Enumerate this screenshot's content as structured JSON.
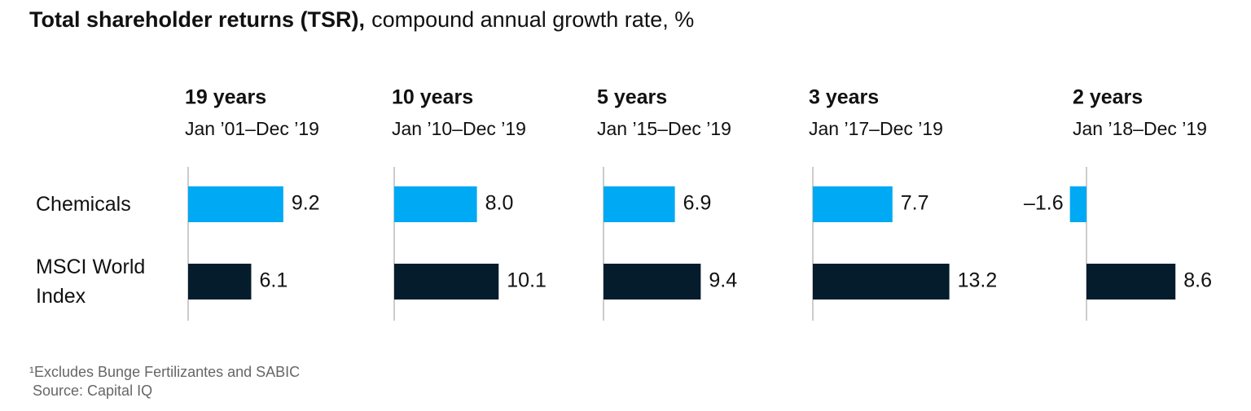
{
  "chart_data": {
    "type": "bar",
    "orientation": "horizontal",
    "title": "Total shareholder returns (TSR),",
    "subtitle": "compound annual growth rate, %",
    "categories": [
      "Chemicals",
      "MSCI World Index"
    ],
    "colors": [
      "#00a9f4",
      "#051c2c"
    ],
    "xlim": [
      -2,
      14
    ],
    "panels": [
      {
        "title": "19 years",
        "subtitle": "Jan ’01–Dec ’19",
        "values": [
          9.2,
          6.1
        ],
        "value_labels": [
          "9.2",
          "6.1"
        ]
      },
      {
        "title": "10 years",
        "subtitle": "Jan ’10–Dec ’19",
        "values": [
          8.0,
          10.1
        ],
        "value_labels": [
          "8.0",
          "10.1"
        ]
      },
      {
        "title": "5 years",
        "subtitle": "Jan ’15–Dec ’19",
        "values": [
          6.9,
          9.4
        ],
        "value_labels": [
          "6.9",
          "9.4"
        ]
      },
      {
        "title": "3 years",
        "subtitle": "Jan ’17–Dec ’19",
        "values": [
          7.7,
          13.2
        ],
        "value_labels": [
          "7.7",
          "13.2"
        ]
      },
      {
        "title": "2 years",
        "subtitle": "Jan ’18–Dec ’19",
        "values": [
          -1.6,
          8.6
        ],
        "value_labels": [
          "–1.6",
          "8.6"
        ]
      }
    ],
    "notes": [
      "¹Excludes Bunge Fertilizantes and SABIC",
      "Source: Capital IQ"
    ]
  }
}
